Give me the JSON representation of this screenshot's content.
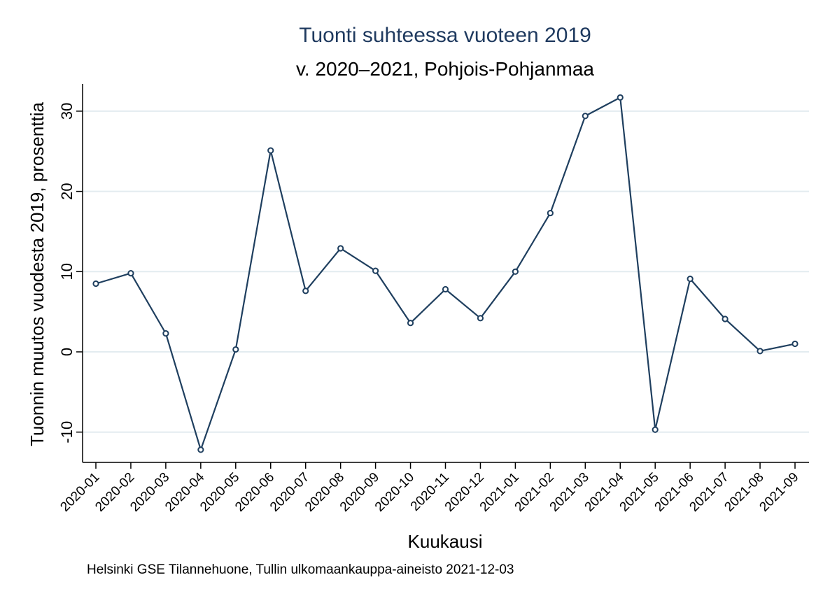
{
  "chart_data": {
    "type": "line",
    "title": "Tuonti suhteessa vuoteen 2019",
    "subtitle": "v. 2020–2021, Pohjois-Pohjanmaa",
    "xlabel": "Kuukausi",
    "ylabel": "Tuonnin muutos vuodesta 2019, prosenttia",
    "note": "Helsinki GSE Tilannehuone, Tullin ulkomaankauppa-aineisto 2021-12-03",
    "categories": [
      "2020-01",
      "2020-02",
      "2020-03",
      "2020-04",
      "2020-05",
      "2020-06",
      "2020-07",
      "2020-08",
      "2020-09",
      "2020-10",
      "2020-11",
      "2020-12",
      "2021-01",
      "2021-02",
      "2021-03",
      "2021-04",
      "2021-05",
      "2021-06",
      "2021-07",
      "2021-08",
      "2021-09"
    ],
    "series": [
      {
        "values": [
          8.5,
          9.8,
          2.3,
          -12.2,
          0.3,
          25.1,
          7.6,
          12.9,
          10.1,
          3.6,
          7.8,
          4.2,
          10.0,
          17.3,
          29.4,
          31.7,
          -9.7,
          9.1,
          4.1,
          0.1,
          1.0
        ]
      }
    ],
    "yticks": [
      -10,
      0,
      10,
      20,
      30
    ],
    "ylim": [
      -13.5,
      33.5
    ],
    "grid": true,
    "legend": "none",
    "colors": {
      "line": "#1f3f5f",
      "grid": "#e3ecf0",
      "title": "#1f3a5f"
    }
  }
}
